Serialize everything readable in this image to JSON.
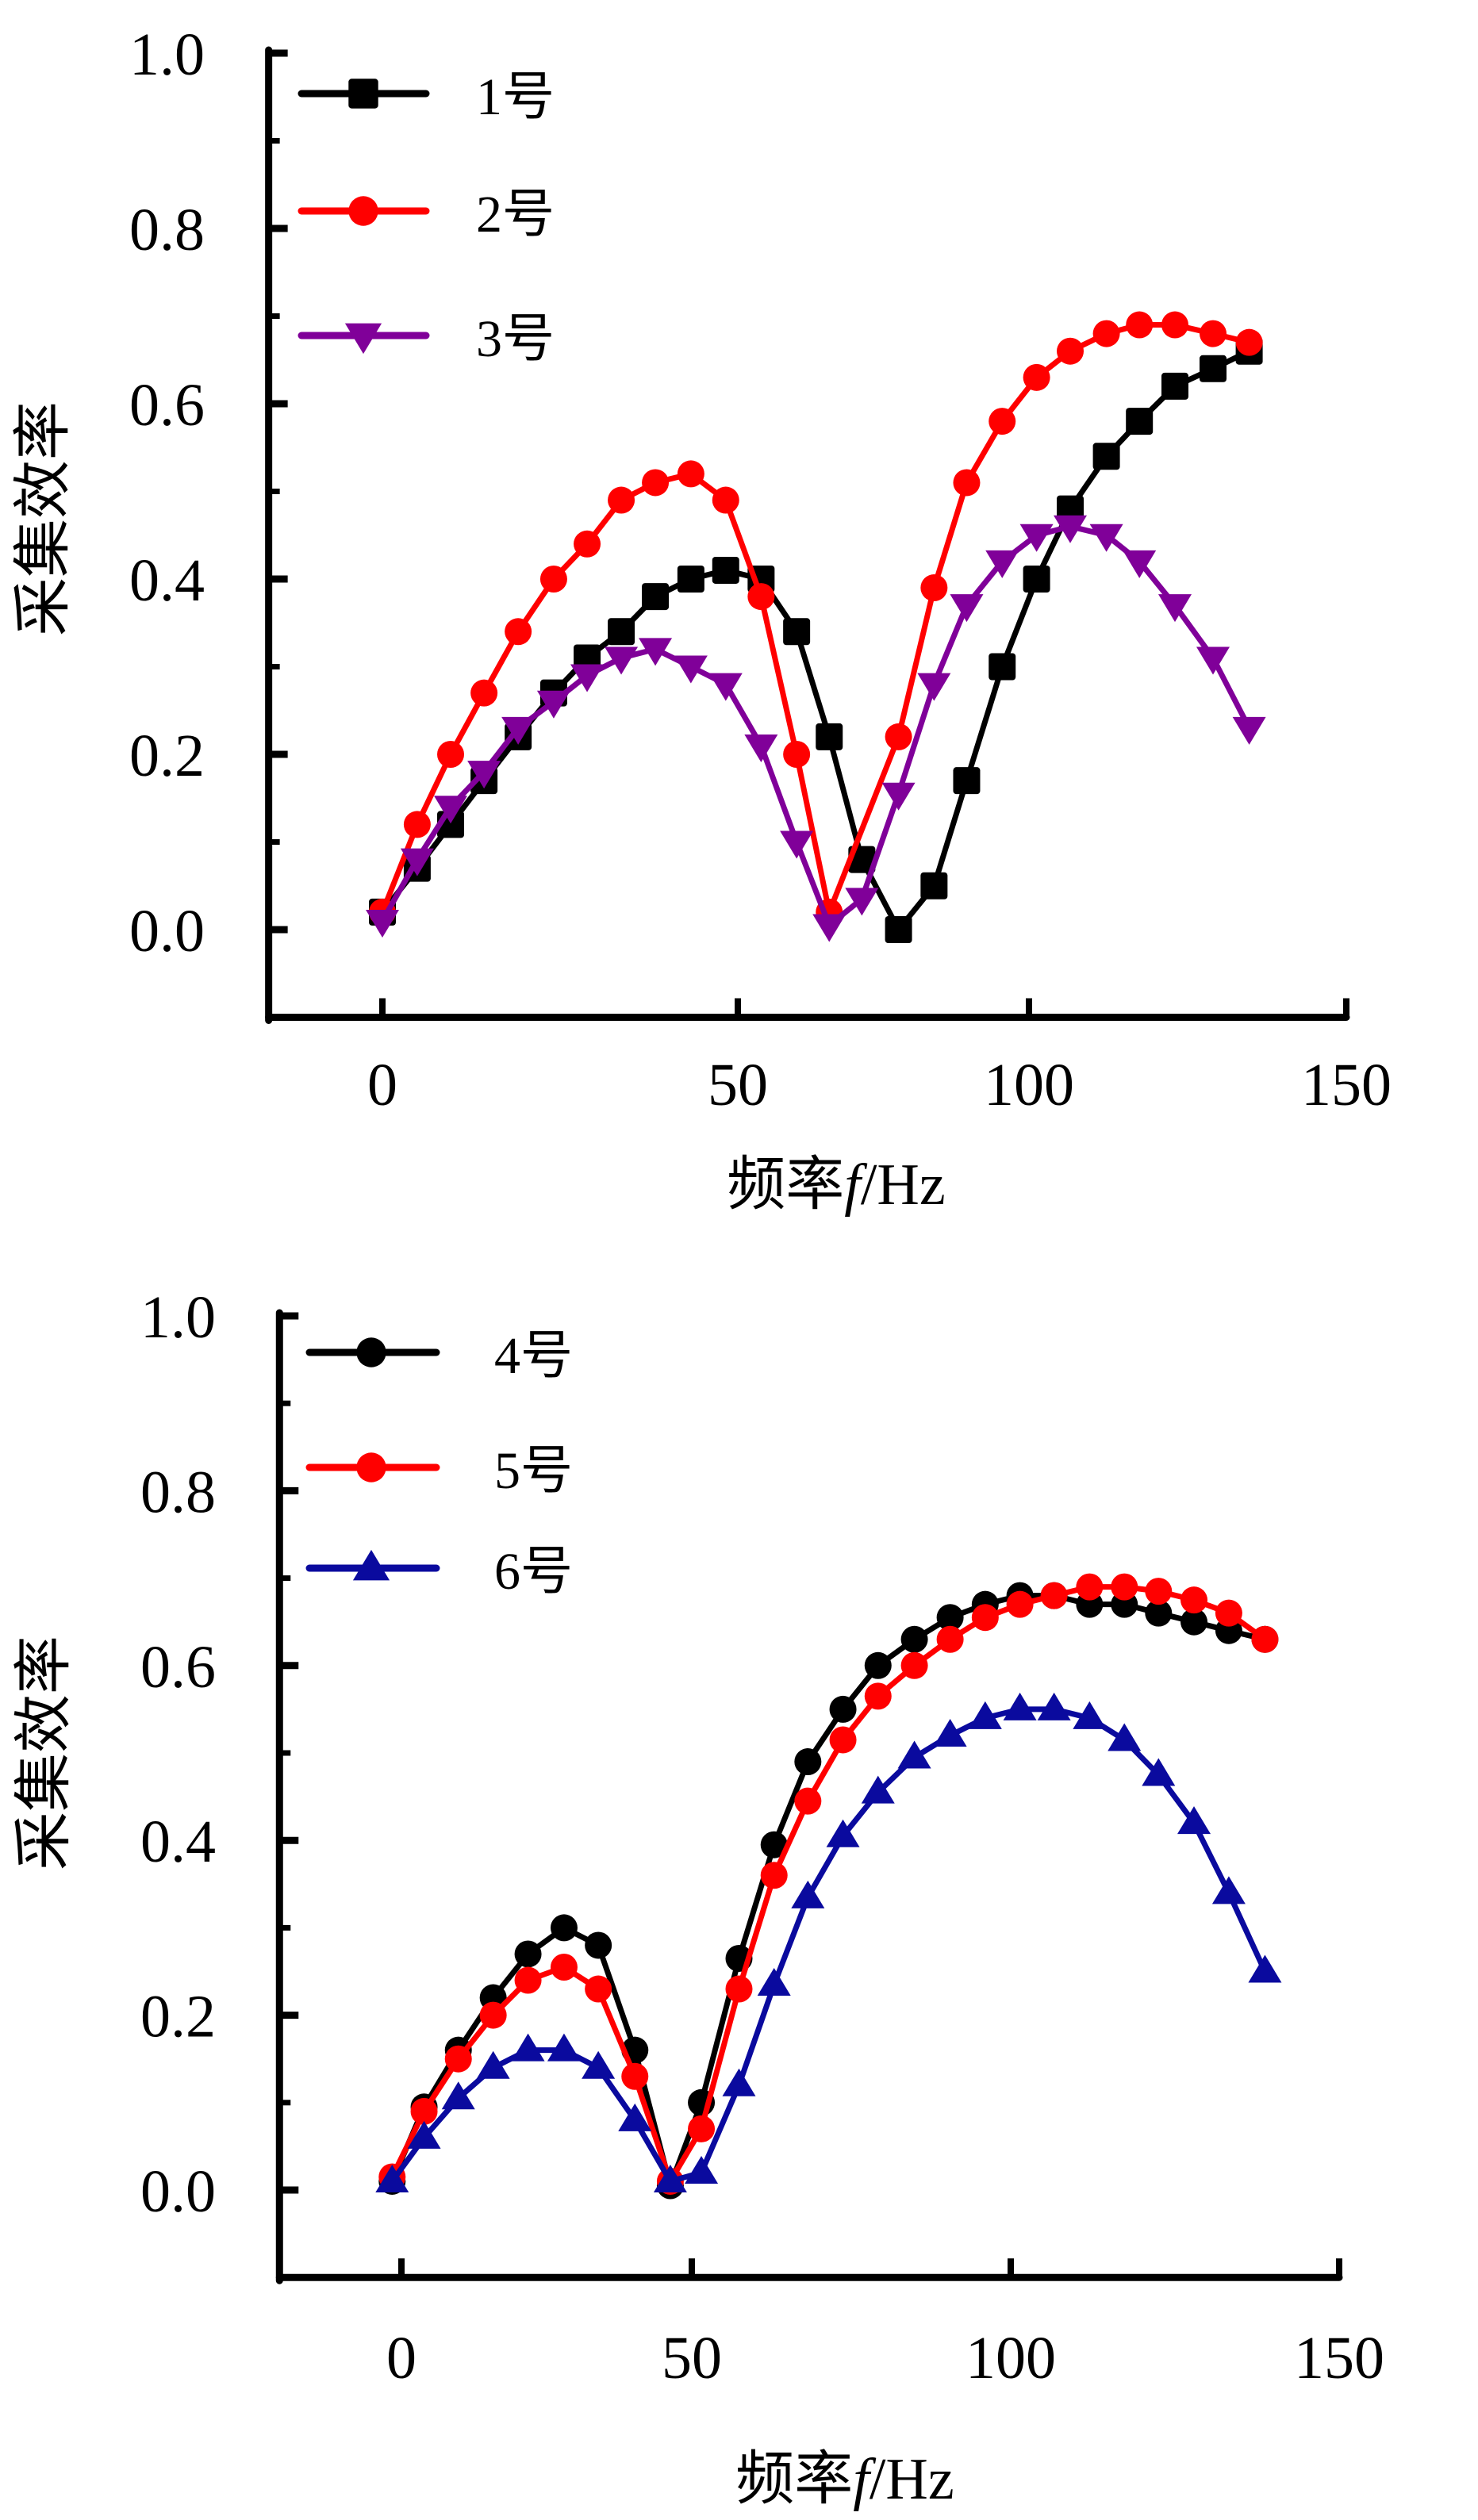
{
  "chart_data": [
    {
      "type": "line",
      "title": "",
      "xlabel": "频率f/Hz",
      "ylabel": "采集效率",
      "xlim": [
        -16,
        150
      ],
      "ylim": [
        -0.1,
        1.0
      ],
      "grid": false,
      "legend_placement": "top-left",
      "x_ticks": [
        0,
        50,
        100,
        150
      ],
      "x_tick_labels": [
        "0",
        "50",
        "100",
        "150"
      ],
      "y_ticks": [
        0.0,
        0.2,
        0.4,
        0.6,
        0.8,
        1.0
      ],
      "y_tick_labels": [
        "0.0",
        "0.2",
        "0.4",
        "0.6",
        "0.8",
        "1.0"
      ],
      "x": [
        0,
        4.9,
        9.6,
        14.3,
        19.1,
        24.1,
        28.8,
        33.6,
        38.4,
        43.4,
        48.3,
        54.0,
        60.1,
        65.7,
        71.3,
        77.6,
        83.7,
        89.3,
        95.4,
        101.2,
        106.5,
        112.2,
        117.4,
        123.0,
        129.0,
        134.7
      ],
      "series": [
        {
          "name": "1号",
          "color": "#000000",
          "marker": "square",
          "values": [
            0.02,
            0.07,
            0.12,
            0.17,
            0.22,
            0.27,
            0.31,
            0.34,
            0.38,
            0.4,
            0.41,
            0.4,
            0.34,
            0.22,
            0.08,
            0.0,
            0.05,
            0.17,
            0.3,
            0.4,
            0.48,
            0.54,
            0.58,
            0.62,
            0.64,
            0.66
          ]
        },
        {
          "name": "2号",
          "color": "#ff0000",
          "marker": "circle",
          "values": [
            0.02,
            0.12,
            0.2,
            0.27,
            0.34,
            0.4,
            0.44,
            0.49,
            0.51,
            0.52,
            0.49,
            0.38,
            0.2,
            0.02,
            null,
            0.22,
            0.39,
            0.51,
            0.58,
            0.63,
            0.66,
            0.68,
            0.69,
            0.69,
            0.68,
            0.67
          ]
        },
        {
          "name": "3号",
          "color": "#800099",
          "marker": "triangle-down",
          "values": [
            0.01,
            0.08,
            0.14,
            0.18,
            0.23,
            0.26,
            0.29,
            0.31,
            0.32,
            0.3,
            0.28,
            0.21,
            0.1,
            0.005,
            0.035,
            0.155,
            0.28,
            0.37,
            0.42,
            0.45,
            0.46,
            0.45,
            0.42,
            0.37,
            0.31,
            0.23
          ]
        }
      ]
    },
    {
      "type": "line",
      "title": "",
      "xlabel": "频率f/Hz",
      "ylabel": "采集效率",
      "xlim": [
        -21,
        150
      ],
      "ylim": [
        -0.1,
        1.0
      ],
      "grid": false,
      "legend_placement": "top-left",
      "x_ticks": [
        0,
        50,
        100,
        150
      ],
      "x_tick_labels": [
        "0",
        "50",
        "100",
        "150"
      ],
      "y_ticks": [
        0.0,
        0.2,
        0.4,
        0.6,
        0.8,
        1.0
      ],
      "y_tick_labels": [
        "0.0",
        "0.2",
        "0.4",
        "0.6",
        "0.8",
        "1.0"
      ],
      "x": [
        -1.6,
        3.9,
        9.8,
        15.8,
        21.8,
        28.0,
        33.9,
        40.2,
        46.3,
        51.5,
        57.4,
        62.9,
        68.2,
        73.7,
        79.2,
        84.9,
        90.5,
        96.0,
        101.4,
        106.6,
        112.0,
        117.3,
        122.5,
        127.9,
        133.2,
        138.7
      ],
      "series": [
        {
          "name": "4号",
          "color": "#000000",
          "marker": "circle",
          "values": [
            0.01,
            0.095,
            0.16,
            0.22,
            0.27,
            0.3,
            0.28,
            0.16,
            0.005,
            0.1,
            0.265,
            0.395,
            0.49,
            0.55,
            0.6,
            0.63,
            0.655,
            0.67,
            0.68,
            0.68,
            0.67,
            0.67,
            0.66,
            0.65,
            0.64,
            0.63
          ]
        },
        {
          "name": "5号",
          "color": "#ff0000",
          "marker": "circle",
          "values": [
            0.015,
            0.09,
            0.15,
            0.2,
            0.24,
            0.255,
            0.23,
            0.13,
            0.01,
            0.07,
            0.23,
            0.36,
            0.445,
            0.515,
            0.565,
            0.6,
            0.63,
            0.655,
            0.67,
            0.68,
            0.69,
            0.69,
            0.685,
            0.675,
            0.66,
            0.63
          ]
        },
        {
          "name": "6号",
          "color": "#0a0a9e",
          "marker": "triangle-up",
          "values": [
            0.01,
            0.06,
            0.105,
            0.14,
            0.16,
            0.16,
            0.14,
            0.08,
            0.01,
            0.02,
            0.12,
            0.235,
            0.335,
            0.405,
            0.455,
            0.495,
            0.52,
            0.54,
            0.55,
            0.55,
            0.54,
            0.515,
            0.475,
            0.42,
            0.34,
            0.25
          ]
        }
      ]
    }
  ]
}
